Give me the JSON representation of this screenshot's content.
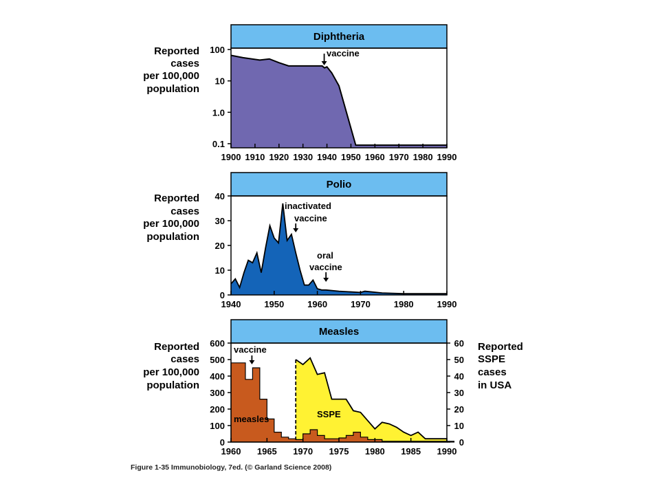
{
  "caption": "Figure 1-35 Immunobiology, 7ed. (© Garland Science 2008)",
  "colors": {
    "title_band": "#6cbdf0",
    "diphtheria_fill": "#7068b0",
    "polio_fill": "#1464b8",
    "measles_fill": "#c85a1e",
    "sspe_fill": "#fff233",
    "line": "#000000"
  },
  "chart_data": [
    {
      "type": "area",
      "title": "Diphtheria",
      "ylabel": [
        "Reported",
        "cases",
        "per 100,000",
        "population"
      ],
      "yscale": "log",
      "xlim": [
        1900,
        1990
      ],
      "ylim": [
        0.1,
        100
      ],
      "x_ticks": [
        1900,
        1910,
        1920,
        1930,
        1940,
        1950,
        1960,
        1970,
        1980,
        1990
      ],
      "y_ticks": [
        {
          "value": 100,
          "label": "100"
        },
        {
          "value": 10,
          "label": "10"
        },
        {
          "value": 1,
          "label": "1.0"
        },
        {
          "value": 0.1,
          "label": "0.1"
        }
      ],
      "series": [
        {
          "x": [
            1900,
            1905,
            1912,
            1916,
            1920,
            1924,
            1930,
            1938,
            1939,
            1940,
            1942,
            1945,
            1952,
            1955,
            1960,
            1970,
            1980,
            1990
          ],
          "y": [
            65,
            55,
            46,
            50,
            38,
            30,
            30,
            30,
            26,
            28,
            18,
            7,
            0.09,
            0.09,
            0.09,
            0.09,
            0.09,
            0.09
          ]
        }
      ],
      "annotations": [
        {
          "text": "vaccine",
          "x": 1939,
          "arrow": true
        }
      ]
    },
    {
      "type": "area",
      "title": "Polio",
      "ylabel": [
        "Reported",
        "cases",
        "per 100,000",
        "population"
      ],
      "xlim": [
        1940,
        1990
      ],
      "ylim": [
        0,
        40
      ],
      "x_ticks": [
        1940,
        1950,
        1960,
        1970,
        1980,
        1990
      ],
      "y_ticks": [
        {
          "value": 0,
          "label": "0"
        },
        {
          "value": 10,
          "label": "10"
        },
        {
          "value": 20,
          "label": "20"
        },
        {
          "value": 30,
          "label": "30"
        },
        {
          "value": 40,
          "label": "40"
        }
      ],
      "series": [
        {
          "x": [
            1940,
            1941,
            1942,
            1943,
            1944,
            1945,
            1946,
            1947,
            1948,
            1949,
            1950,
            1951,
            1952,
            1953,
            1954,
            1955,
            1956,
            1957,
            1958,
            1959,
            1960,
            1961,
            1962,
            1965,
            1970,
            1971,
            1975,
            1980,
            1990
          ],
          "y": [
            4.5,
            6.5,
            3,
            9,
            14,
            13,
            17,
            9,
            19,
            28,
            23,
            21,
            37,
            22,
            24.5,
            17,
            10,
            4,
            4,
            6,
            2.5,
            2,
            2,
            1.5,
            1,
            1.5,
            0.8,
            0.5,
            0.5
          ]
        }
      ],
      "annotations": [
        {
          "text": [
            "inactivated",
            "vaccine"
          ],
          "x": 1955,
          "arrow": true
        },
        {
          "text": [
            "oral",
            "vaccine"
          ],
          "x": 1962,
          "arrow": true
        }
      ]
    },
    {
      "type": "area",
      "title": "Measles",
      "ylabel": [
        "Reported",
        "cases",
        "per 100,000",
        "population"
      ],
      "ylabel_right": [
        "Reported",
        "SSPE",
        "cases",
        "in USA"
      ],
      "xlim": [
        1960,
        1990
      ],
      "ylim": [
        0,
        600
      ],
      "ylim_right": [
        0,
        60
      ],
      "x_ticks": [
        1960,
        1965,
        1970,
        1975,
        1980,
        1985,
        1990
      ],
      "y_ticks": [
        {
          "value": 0,
          "label": "0"
        },
        {
          "value": 100,
          "label": "100"
        },
        {
          "value": 200,
          "label": "200"
        },
        {
          "value": 300,
          "label": "300"
        },
        {
          "value": 400,
          "label": "400"
        },
        {
          "value": 500,
          "label": "500"
        },
        {
          "value": 600,
          "label": "600"
        }
      ],
      "y_ticks_right": [
        {
          "value": 0,
          "label": "0"
        },
        {
          "value": 10,
          "label": "10"
        },
        {
          "value": 20,
          "label": "20"
        },
        {
          "value": 30,
          "label": "30"
        },
        {
          "value": 40,
          "label": "40"
        },
        {
          "value": 50,
          "label": "50"
        },
        {
          "value": 60,
          "label": "60"
        }
      ],
      "series": [
        {
          "name": "measles",
          "x": [
            1960,
            1961,
            1962,
            1963,
            1964,
            1965,
            1966,
            1967,
            1968,
            1969,
            1970,
            1971,
            1972,
            1973,
            1974,
            1975,
            1976,
            1977,
            1978,
            1979,
            1980,
            1981,
            1982,
            1983,
            1984,
            1985,
            1986,
            1987,
            1988,
            1989,
            1990
          ],
          "y": [
            480,
            480,
            380,
            450,
            260,
            140,
            60,
            30,
            20,
            15,
            50,
            75,
            40,
            20,
            20,
            25,
            40,
            60,
            30,
            15,
            15,
            5,
            5,
            5,
            5,
            5,
            5,
            5,
            5,
            5,
            5
          ]
        },
        {
          "name": "SSPE",
          "x": [
            1969,
            1970,
            1971,
            1972,
            1973,
            1974,
            1975,
            1976,
            1977,
            1978,
            1979,
            1980,
            1981,
            1982,
            1983,
            1984,
            1985,
            1986,
            1987,
            1988,
            1989,
            1990
          ],
          "y": [
            50,
            47,
            51,
            41,
            42,
            26,
            26,
            26,
            19,
            18,
            13,
            8,
            12,
            11,
            9,
            6,
            4,
            6,
            2,
            2,
            2,
            2
          ]
        }
      ],
      "annotations": [
        {
          "text": "vaccine",
          "x": 1963,
          "arrow": true
        },
        {
          "text": "measles",
          "label_for": "measles"
        },
        {
          "text": "SSPE",
          "label_for": "SSPE"
        }
      ]
    }
  ]
}
